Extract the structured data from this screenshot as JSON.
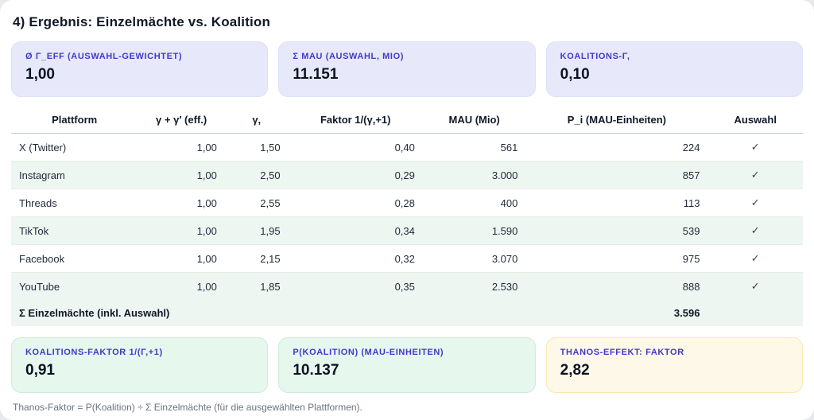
{
  "title": "4) Ergebnis: Einzelmächte vs. Koalition",
  "top_stats": [
    {
      "label": "Ø Γ_EFF (AUSWAHL-GEWICHTET)",
      "value": "1,00"
    },
    {
      "label": "Σ MAU (AUSWAHL, MIO)",
      "value": "11.151"
    },
    {
      "label": "KOALITIONS-Γ,",
      "value": "0,10"
    }
  ],
  "table": {
    "columns": [
      "Plattform",
      "γ + γ′ (eff.)",
      "γ,",
      "Faktor 1/(γ,+1)",
      "MAU (Mio)",
      "P_i (MAU-Einheiten)",
      "Auswahl"
    ],
    "rows": [
      {
        "platform": "X (Twitter)",
        "gamma_eff": "1,00",
        "gamma_s": "1,50",
        "faktor": "0,40",
        "mau": "561",
        "p_i": "224",
        "auswahl": "✓"
      },
      {
        "platform": "Instagram",
        "gamma_eff": "1,00",
        "gamma_s": "2,50",
        "faktor": "0,29",
        "mau": "3.000",
        "p_i": "857",
        "auswahl": "✓"
      },
      {
        "platform": "Threads",
        "gamma_eff": "1,00",
        "gamma_s": "2,55",
        "faktor": "0,28",
        "mau": "400",
        "p_i": "113",
        "auswahl": "✓"
      },
      {
        "platform": "TikTok",
        "gamma_eff": "1,00",
        "gamma_s": "1,95",
        "faktor": "0,34",
        "mau": "1.590",
        "p_i": "539",
        "auswahl": "✓"
      },
      {
        "platform": "Facebook",
        "gamma_eff": "1,00",
        "gamma_s": "2,15",
        "faktor": "0,32",
        "mau": "3.070",
        "p_i": "975",
        "auswahl": "✓"
      },
      {
        "platform": "YouTube",
        "gamma_eff": "1,00",
        "gamma_s": "1,85",
        "faktor": "0,35",
        "mau": "2.530",
        "p_i": "888",
        "auswahl": "✓"
      }
    ],
    "total_row": {
      "label": "Σ Einzelmächte (inkl. Auswahl)",
      "p_i_total": "3.596"
    }
  },
  "bottom_stats": [
    {
      "label": "KOALITIONS-FAKTOR 1/(Γ,+1)",
      "value": "0,91"
    },
    {
      "label": "P(KOALITION) (MAU-EINHEITEN)",
      "value": "10.137"
    },
    {
      "label": "THANOS-EFFEKT: FAKTOR",
      "value": "2,82"
    }
  ],
  "note": "Thanos-Faktor = P(Koalition) ÷ Σ Einzelmächte (für die ausgewählten Plattformen).",
  "colors": {
    "card_lavender_bg": "#e7e9fb",
    "card_mint_bg": "#e6f7ee",
    "card_amber_bg": "#fdf8e8",
    "card_label_indigo": "#4338ca",
    "row_alt_bg": "#eef6f1"
  }
}
